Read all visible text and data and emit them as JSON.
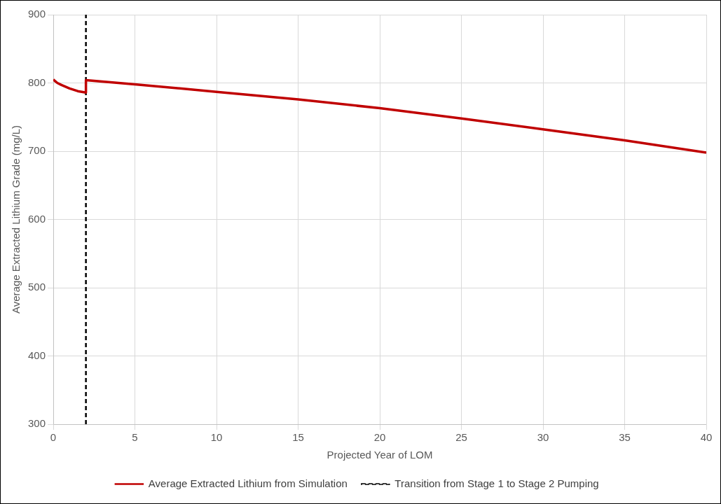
{
  "chart_data": {
    "type": "line",
    "xlabel": "Projected Year of LOM",
    "ylabel": "Average Extracted Lithium Grade (mg/L)",
    "xlim": [
      0,
      40
    ],
    "xticks": [
      0,
      5,
      10,
      15,
      20,
      25,
      30,
      35,
      40
    ],
    "ylim": [
      300,
      900
    ],
    "yticks": [
      300,
      400,
      500,
      600,
      700,
      800,
      900
    ],
    "grid": true,
    "legend": "bottom",
    "series": [
      {
        "name": "Average Extracted Lithium from Simulation",
        "color": "#c00000",
        "x": [
          0,
          0.25,
          0.5,
          1,
          1.5,
          2,
          2,
          5,
          10,
          15,
          20,
          25,
          30,
          35,
          40
        ],
        "values": [
          805,
          800,
          797,
          792,
          788,
          786,
          804,
          798,
          787,
          776,
          763,
          748,
          732,
          716,
          698
        ]
      },
      {
        "name": "Transition from Stage 1 to Stage 2 Pumping",
        "color": "#000000",
        "line_style": "dashed",
        "x": [
          2,
          2
        ],
        "values": [
          300,
          900
        ]
      }
    ]
  }
}
